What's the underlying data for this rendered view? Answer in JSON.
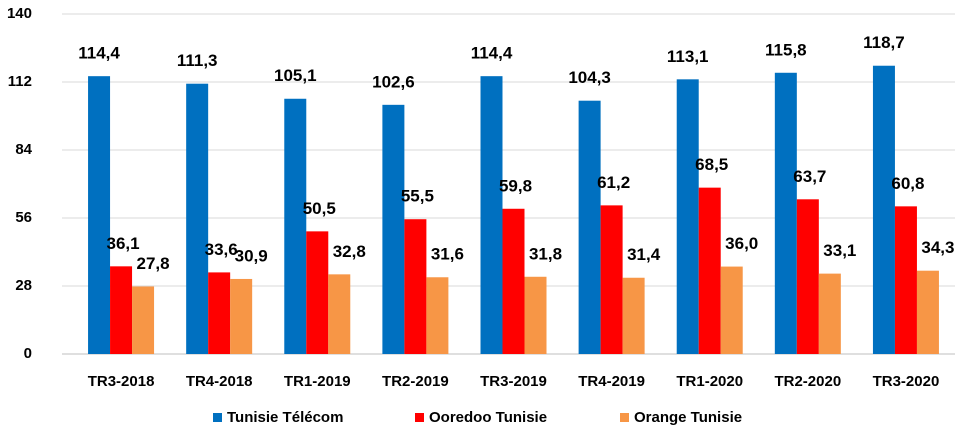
{
  "chart_data": {
    "type": "bar",
    "categories": [
      "TR3-2018",
      "TR4-2018",
      "TR1-2019",
      "TR2-2019",
      "TR3-2019",
      "TR4-2019",
      "TR1-2020",
      "TR2-2020",
      "TR3-2020"
    ],
    "series": [
      {
        "name": "Tunisie Télécom",
        "color": "#0070c0",
        "values": [
          114.4,
          111.3,
          105.1,
          102.6,
          114.4,
          104.3,
          113.1,
          115.8,
          118.7
        ],
        "value_labels": [
          "114,4",
          "111,3",
          "105,1",
          "102,6",
          "114,4",
          "104,3",
          "113,1",
          "115,8",
          "118,7"
        ]
      },
      {
        "name": "Ooredoo Tunisie",
        "color": "#ff0000",
        "values": [
          36.1,
          33.6,
          50.5,
          55.5,
          59.8,
          61.2,
          68.5,
          63.7,
          60.8
        ],
        "value_labels": [
          "36,1",
          "33,6",
          "50,5",
          "55,5",
          "59,8",
          "61,2",
          "68,5",
          "63,7",
          "60,8"
        ]
      },
      {
        "name": "Orange Tunisie",
        "color": "#f79646",
        "values": [
          27.8,
          30.9,
          32.8,
          31.6,
          31.8,
          31.4,
          36.0,
          33.1,
          34.3
        ],
        "value_labels": [
          "27,8",
          "30,9",
          "32,8",
          "31,6",
          "31,8",
          "31,4",
          "36,0",
          "33,1",
          "34,3"
        ]
      }
    ],
    "ylim": [
      0,
      140
    ],
    "yticks": [
      0,
      28,
      56,
      84,
      112,
      140
    ],
    "grid": true,
    "legend": "bottom"
  }
}
